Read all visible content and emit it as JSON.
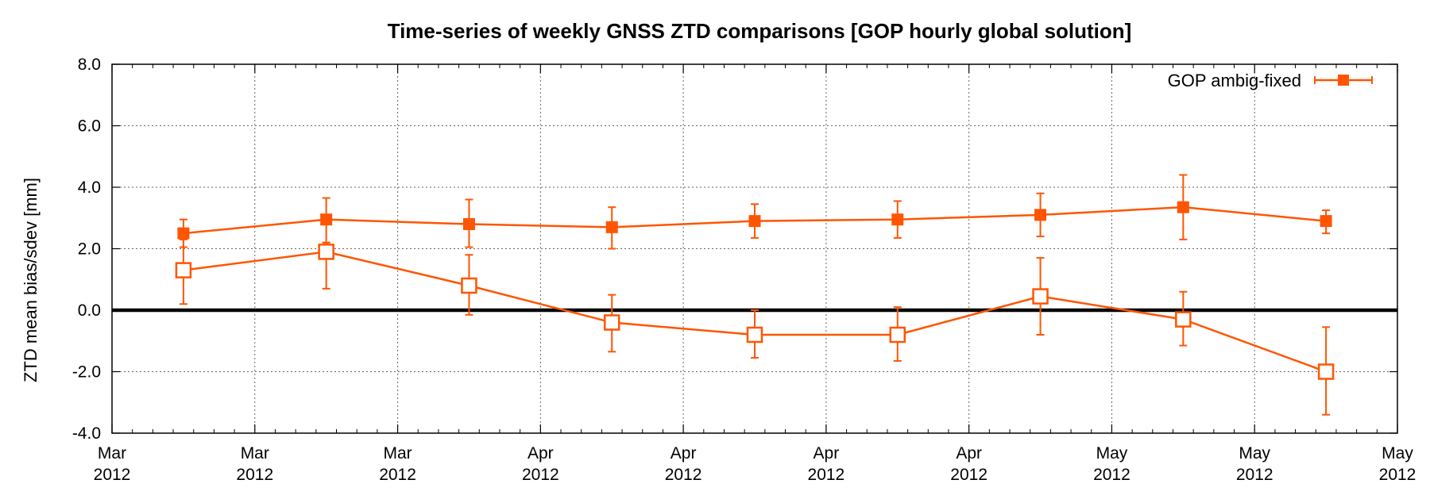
{
  "chart_data": {
    "type": "line",
    "title": "Time-series of weekly GNSS ZTD comparisons [GOP hourly global solution]",
    "ylabel": "ZTD mean bias/sdev [mm]",
    "xlabel": "",
    "ylim": [
      -4.0,
      8.0
    ],
    "yticks": [
      -4.0,
      -2.0,
      0.0,
      2.0,
      4.0,
      6.0,
      8.0
    ],
    "ytick_labels": [
      "-4.0",
      "-2.0",
      "0.0",
      "2.0",
      "4.0",
      "6.0",
      "8.0"
    ],
    "xticks": [
      {
        "line1": "Mar",
        "line2": "2012"
      },
      {
        "line1": "Mar",
        "line2": "2012"
      },
      {
        "line1": "Mar",
        "line2": "2012"
      },
      {
        "line1": "Apr",
        "line2": "2012"
      },
      {
        "line1": "Apr",
        "line2": "2012"
      },
      {
        "line1": "Apr",
        "line2": "2012"
      },
      {
        "line1": "Apr",
        "line2": "2012"
      },
      {
        "line1": "May",
        "line2": "2012"
      },
      {
        "line1": "May",
        "line2": "2012"
      },
      {
        "line1": "May",
        "line2": "2012"
      }
    ],
    "grid": true,
    "legend_position": "top-right",
    "zero_line": true,
    "series_color": "#ff5500",
    "series": [
      {
        "name": "GOP ambig-fixed",
        "marker": "filled-square",
        "values": [
          2.5,
          2.95,
          2.8,
          2.7,
          2.9,
          2.95,
          3.1,
          3.35,
          2.9
        ],
        "err_low": [
          2.05,
          2.2,
          2.05,
          2.0,
          2.35,
          2.35,
          2.4,
          2.3,
          2.5
        ],
        "err_high": [
          2.95,
          3.65,
          3.6,
          3.35,
          3.45,
          3.55,
          3.8,
          4.4,
          3.25
        ]
      },
      {
        "name": "",
        "marker": "open-square",
        "values": [
          1.3,
          1.9,
          0.8,
          -0.4,
          -0.8,
          -0.8,
          0.45,
          -0.3,
          -2.0
        ],
        "err_low": [
          0.2,
          0.7,
          -0.15,
          -1.35,
          -1.55,
          -1.65,
          -0.8,
          -1.15,
          -3.4
        ],
        "err_high": [
          2.3,
          2.2,
          1.8,
          0.5,
          0.0,
          0.1,
          1.7,
          0.6,
          -0.55
        ]
      }
    ]
  }
}
